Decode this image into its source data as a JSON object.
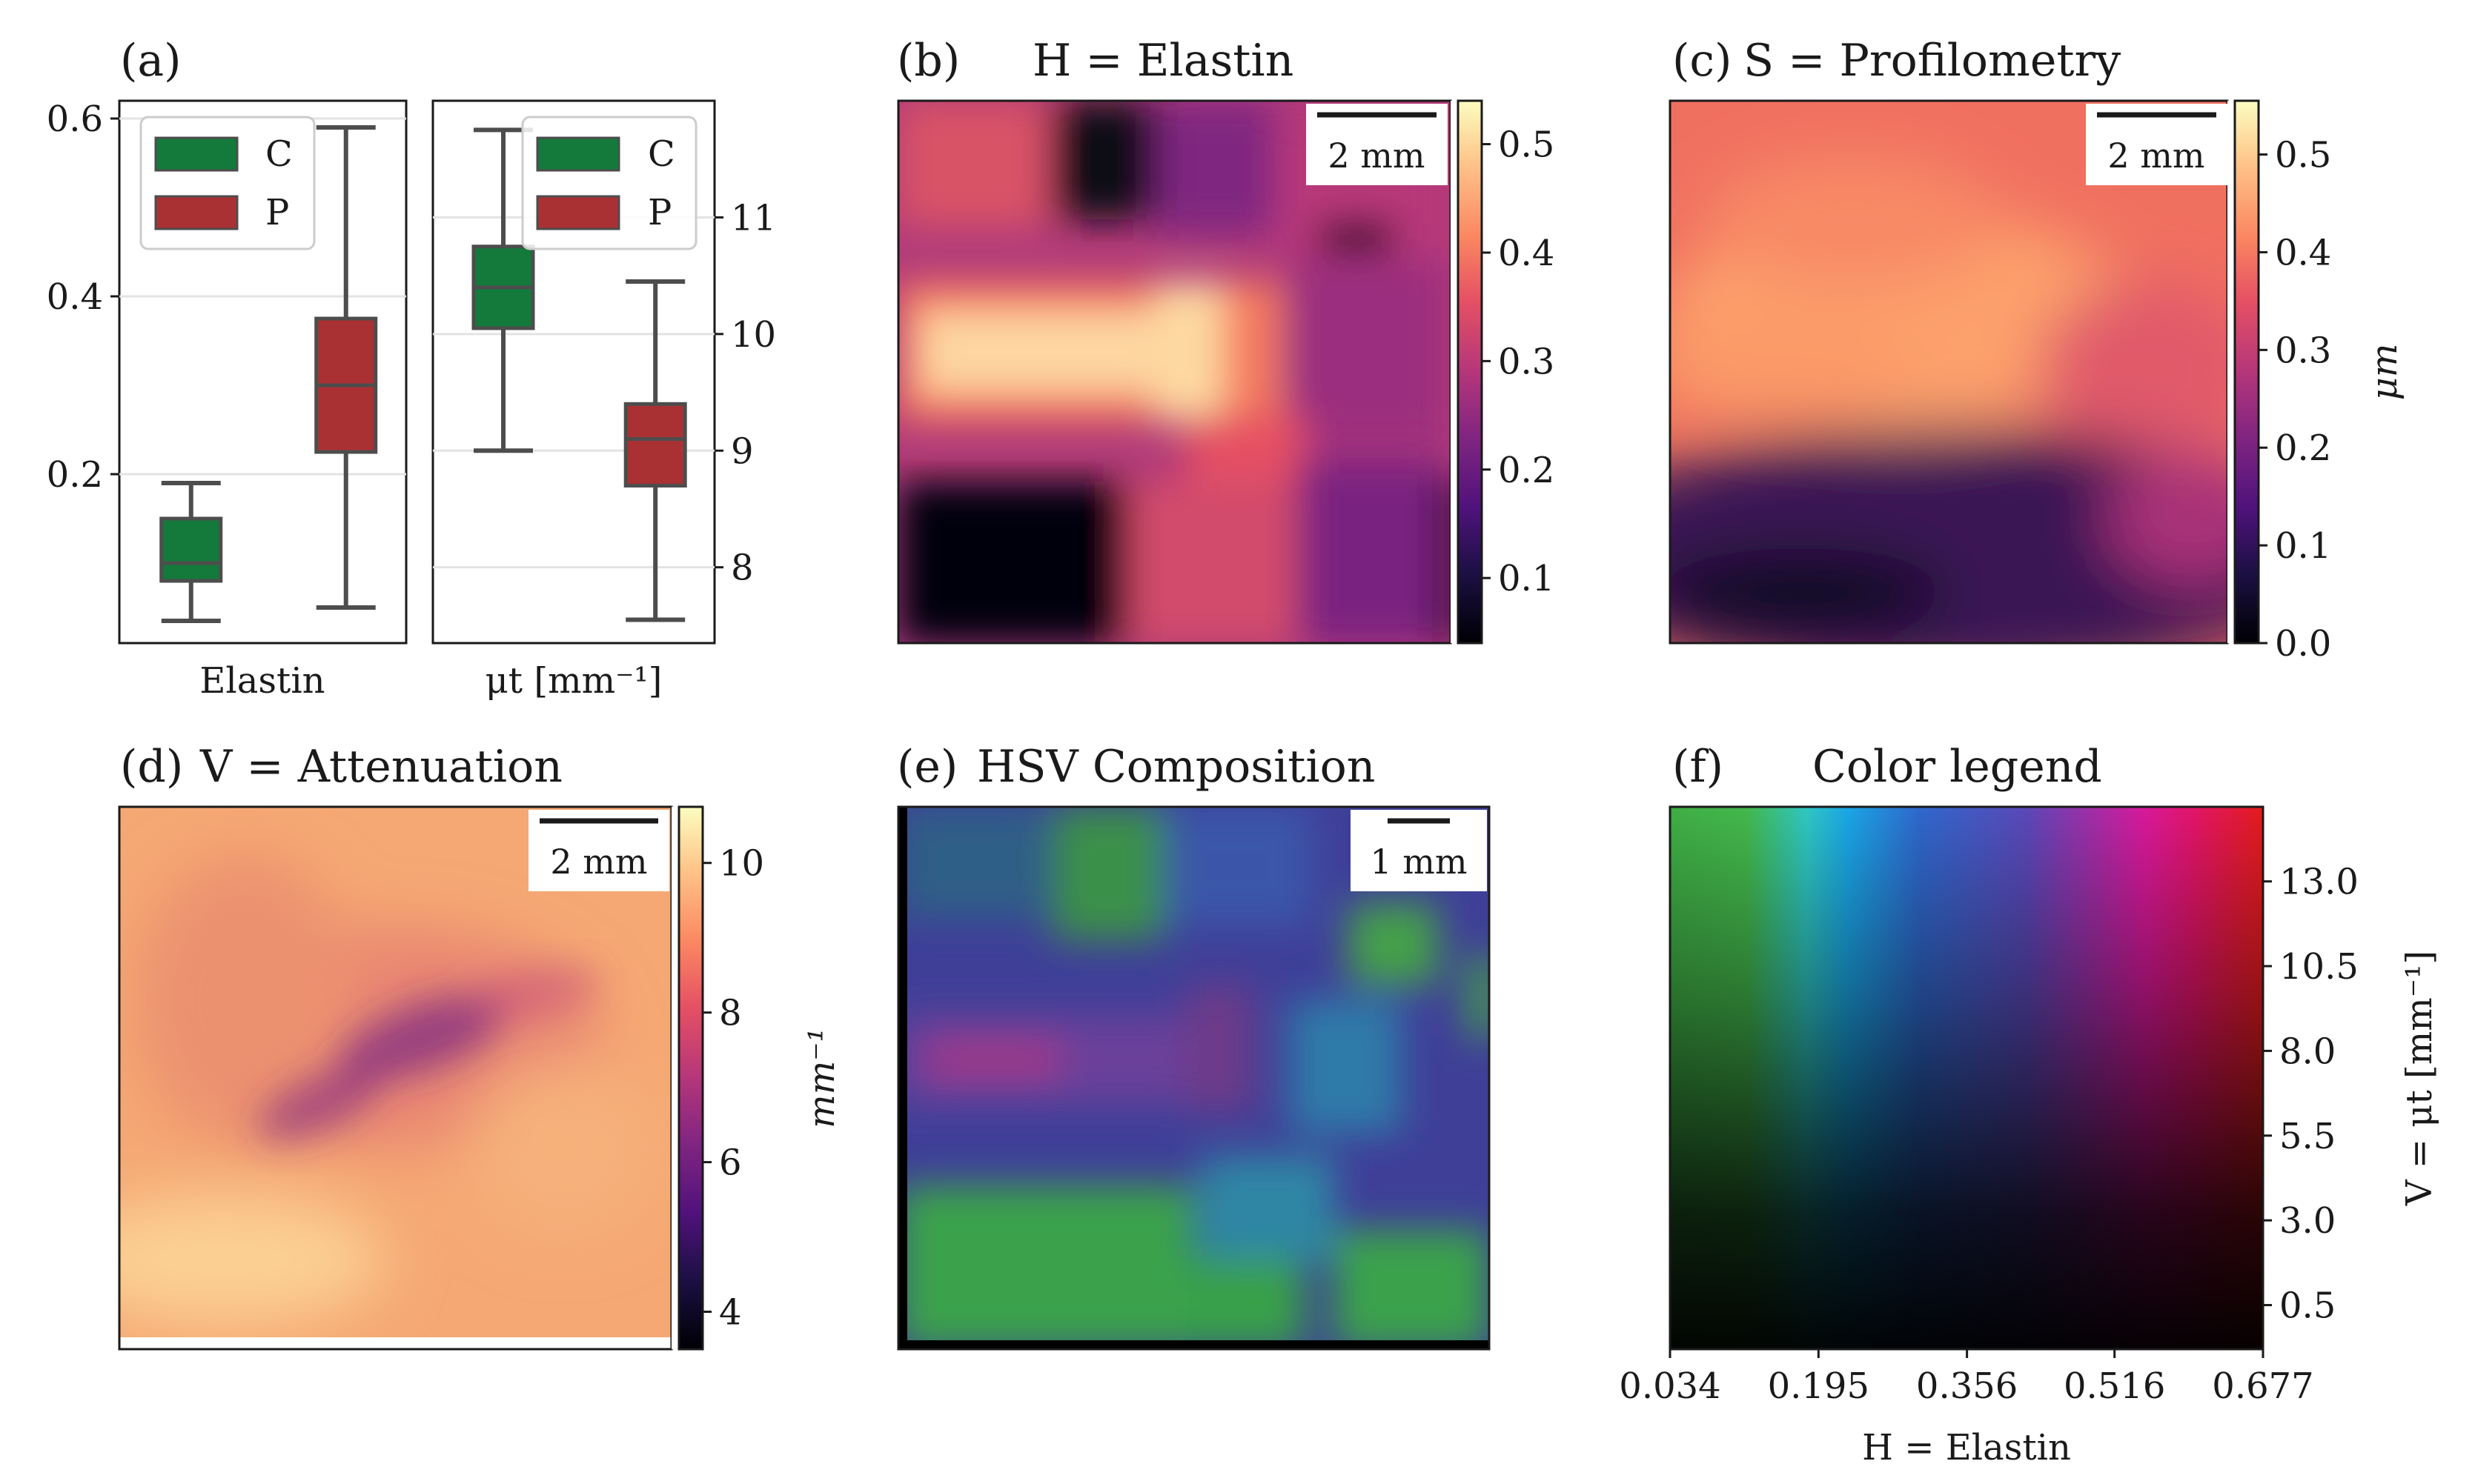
{
  "chart_data": [
    {
      "panel": "(a)",
      "type": "box",
      "subplots": [
        {
          "xlabel": "Elastin",
          "yaxis": "left",
          "ylim": [
            0.01,
            0.62
          ],
          "yticks": [
            0.2,
            0.4,
            0.6
          ],
          "ytick_labels": [
            "0.2",
            "0.4",
            "0.6"
          ],
          "boxes": [
            {
              "group": "C",
              "whislo": 0.035,
              "q1": 0.08,
              "med": 0.1,
              "q3": 0.15,
              "whishi": 0.19
            },
            {
              "group": "P",
              "whislo": 0.05,
              "q1": 0.225,
              "med": 0.3,
              "q3": 0.375,
              "whishi": 0.59
            }
          ]
        },
        {
          "xlabel": "μt [mm⁻¹]",
          "yaxis": "right",
          "ylim": [
            7.35,
            12.0
          ],
          "yticks": [
            8,
            9,
            10,
            11
          ],
          "ytick_labels": [
            "8",
            "9",
            "10",
            "11"
          ],
          "boxes": [
            {
              "group": "C",
              "whislo": 9.0,
              "q1": 10.05,
              "med": 10.4,
              "q3": 10.75,
              "whishi": 11.75
            },
            {
              "group": "P",
              "whislo": 7.55,
              "q1": 8.7,
              "med": 9.1,
              "q3": 9.4,
              "whishi": 10.45
            }
          ]
        }
      ],
      "legend": [
        {
          "label": "C",
          "color": "#137a3b"
        },
        {
          "label": "P",
          "color": "#aa3133"
        }
      ],
      "legend_position": "top"
    },
    {
      "panel": "(b)",
      "type": "heatmap",
      "title": "H = Elastin",
      "scale_bar": "2 mm",
      "colormap": "magma",
      "colorbar": {
        "min": 0.04,
        "max": 0.54,
        "ticks": [
          0.1,
          0.2,
          0.3,
          0.4,
          0.5
        ],
        "tick_labels": [
          "0.1",
          "0.2",
          "0.3",
          "0.4",
          "0.5"
        ],
        "label": ""
      }
    },
    {
      "panel": "(c)",
      "type": "heatmap",
      "title": "S = Profilometry",
      "scale_bar": "2 mm",
      "colormap": "magma",
      "colorbar": {
        "min": 0.0,
        "max": 0.555,
        "ticks": [
          0.0,
          0.1,
          0.2,
          0.3,
          0.4,
          0.5
        ],
        "tick_labels": [
          "0.0",
          "0.1",
          "0.2",
          "0.3",
          "0.4",
          "0.5"
        ],
        "label": "μm"
      }
    },
    {
      "panel": "(d)",
      "type": "heatmap",
      "title": "V = Attenuation",
      "scale_bar": "2 mm",
      "colormap": "magma",
      "colorbar": {
        "min": 3.5,
        "max": 10.75,
        "ticks": [
          4,
          6,
          8,
          10
        ],
        "tick_labels": [
          "4",
          "6",
          "8",
          "10"
        ],
        "label": "mm⁻¹"
      }
    },
    {
      "panel": "(e)",
      "type": "heatmap",
      "title": "HSV Composition",
      "scale_bar": "1 mm"
    },
    {
      "panel": "(f)",
      "type": "heatmap",
      "title": "Color legend",
      "xlabel": "H = Elastin",
      "ylabel": "V = μt [mm⁻¹]",
      "xlim": [
        0.034,
        0.677
      ],
      "xticks": [
        0.034,
        0.195,
        0.356,
        0.516,
        0.677
      ],
      "xtick_labels": [
        "0.034",
        "0.195",
        "0.356",
        "0.516",
        "0.677"
      ],
      "ylim": [
        -0.8,
        15.2
      ],
      "yticks": [
        0.5,
        3.0,
        5.5,
        8.0,
        10.5,
        13.0
      ],
      "ytick_labels": [
        "0.5",
        "3.0",
        "5.5",
        "8.0",
        "10.5",
        "13.0"
      ]
    }
  ]
}
